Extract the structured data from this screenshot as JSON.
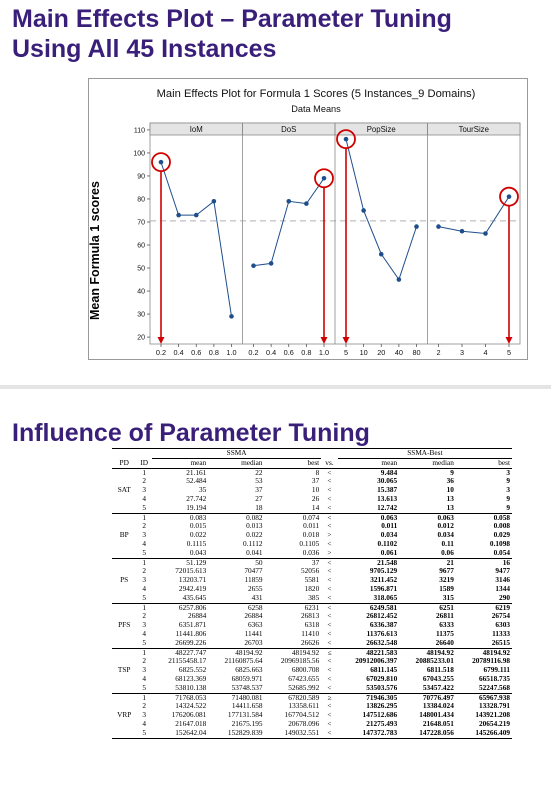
{
  "slide": {
    "title_line1": "Main Effects Plot – Parameter Tuning",
    "title_line2": "Using All 45 Instances",
    "section_title": "Influence of Parameter Tuning",
    "y_axis_label": "Mean Formula 1 scores"
  },
  "chart_data": {
    "type": "line",
    "title": "Main Effects Plot for Formula 1 Scores (5 Instances_9 Domains)",
    "subtitle": "Data Means",
    "ylabel": "Mean Formula 1 scores",
    "ylim": [
      20,
      110
    ],
    "yticks": [
      20,
      30,
      40,
      50,
      60,
      70,
      80,
      90,
      100,
      110
    ],
    "reference_line": 70.5,
    "grid": false,
    "panels": [
      {
        "name": "IoM",
        "x": [
          "0.2",
          "0.4",
          "0.6",
          "0.8",
          "1.0"
        ],
        "values": [
          96,
          73,
          73,
          79,
          29
        ],
        "highlight": "0.2"
      },
      {
        "name": "DoS",
        "x": [
          "0.2",
          "0.4",
          "0.6",
          "0.8",
          "1.0"
        ],
        "values": [
          51,
          52,
          79,
          78,
          89
        ],
        "highlight": "1.0"
      },
      {
        "name": "PopSize",
        "x": [
          "5",
          "10",
          "20",
          "40",
          "80"
        ],
        "values": [
          106,
          75,
          56,
          45,
          68
        ],
        "highlight": "5"
      },
      {
        "name": "TourSize",
        "x": [
          "2",
          "3",
          "4",
          "5"
        ],
        "values": [
          68,
          66,
          65,
          81
        ],
        "highlight": "5"
      }
    ],
    "colors": {
      "line": "#1f4e8c",
      "highlight": "#d00000",
      "reference": "#b0b0b0"
    }
  },
  "table": {
    "header_group_left": "SSMA",
    "header_group_right": "SSMA-Best",
    "columns": [
      "PD",
      "ID",
      "mean",
      "median",
      "best",
      "vs.",
      "mean",
      "median",
      "best"
    ],
    "groups": [
      {
        "pd": "SAT",
        "rows": [
          [
            "1",
            "21.161",
            "22",
            "8",
            "<",
            "9.484",
            "9",
            "3"
          ],
          [
            "2",
            "52.484",
            "53",
            "37",
            "<",
            "30.065",
            "36",
            "9"
          ],
          [
            "3",
            "35",
            "37",
            "10",
            "<",
            "15.387",
            "10",
            "3"
          ],
          [
            "4",
            "27.742",
            "27",
            "26",
            "<",
            "13.613",
            "13",
            "9"
          ],
          [
            "5",
            "19.194",
            "18",
            "14",
            "<",
            "12.742",
            "13",
            "9"
          ]
        ]
      },
      {
        "pd": "BP",
        "rows": [
          [
            "1",
            "0.083",
            "0.082",
            "0.074",
            "<",
            "0.063",
            "0.063",
            "0.058"
          ],
          [
            "2",
            "0.015",
            "0.013",
            "0.011",
            "<",
            "0.011",
            "0.012",
            "0.008"
          ],
          [
            "3",
            "0.022",
            "0.022",
            "0.018",
            ">",
            "0.034",
            "0.034",
            "0.029"
          ],
          [
            "4",
            "0.1115",
            "0.1112",
            "0.1105",
            "<",
            "0.1102",
            "0.11",
            "0.1098"
          ],
          [
            "5",
            "0.043",
            "0.041",
            "0.036",
            ">",
            "0.061",
            "0.06",
            "0.054"
          ]
        ]
      },
      {
        "pd": "PS",
        "rows": [
          [
            "1",
            "51.129",
            "50",
            "37",
            "<",
            "21.548",
            "21",
            "16"
          ],
          [
            "2",
            "72015.613",
            "70477",
            "52056",
            "<",
            "9705.129",
            "9677",
            "9477"
          ],
          [
            "3",
            "13203.71",
            "11859",
            "5581",
            "<",
            "3211.452",
            "3219",
            "3146"
          ],
          [
            "4",
            "2942.419",
            "2655",
            "1820",
            "<",
            "1596.871",
            "1589",
            "1344"
          ],
          [
            "5",
            "435.645",
            "431",
            "385",
            "<",
            "318.065",
            "315",
            "290"
          ]
        ]
      },
      {
        "pd": "PFS",
        "rows": [
          [
            "1",
            "6257.806",
            "6258",
            "6231",
            "<",
            "6249.581",
            "6251",
            "6219"
          ],
          [
            "2",
            "26884",
            "26884",
            "26813",
            "<",
            "26812.452",
            "26811",
            "26754"
          ],
          [
            "3",
            "6351.871",
            "6363",
            "6318",
            "<",
            "6336.387",
            "6333",
            "6303"
          ],
          [
            "4",
            "11441.806",
            "11441",
            "11410",
            "<",
            "11376.613",
            "11375",
            "11333"
          ],
          [
            "5",
            "26699.226",
            "26703",
            "26626",
            "<",
            "26632.548",
            "26640",
            "26515"
          ]
        ]
      },
      {
        "pd": "TSP",
        "rows": [
          [
            "1",
            "48227.747",
            "48194.92",
            "48194.92",
            "≤",
            "48221.583",
            "48194.92",
            "48194.92"
          ],
          [
            "2",
            "21155458.17",
            "21160875.64",
            "20969185.56",
            "<",
            "20912006.397",
            "20885233.01",
            "20789116.98"
          ],
          [
            "3",
            "6825.552",
            "6825.663",
            "6800.708",
            "<",
            "6811.145",
            "6811.518",
            "6799.111"
          ],
          [
            "4",
            "68123.369",
            "68059.971",
            "67423.655",
            "<",
            "67029.810",
            "67043.255",
            "66518.735"
          ],
          [
            "5",
            "53810.138",
            "53748.537",
            "52685.992",
            "<",
            "53503.576",
            "53457.422",
            "52247.568"
          ]
        ]
      },
      {
        "pd": "VRP",
        "rows": [
          [
            "1",
            "71768.053",
            "71480.081",
            "67820.589",
            "≥",
            "71946.305",
            "70776.497",
            "65967.938"
          ],
          [
            "2",
            "14324.522",
            "14411.658",
            "13358.611",
            "<",
            "13826.295",
            "13384.024",
            "13328.791"
          ],
          [
            "3",
            "176206.081",
            "177131.584",
            "167704.512",
            "<",
            "147512.686",
            "148001.434",
            "143921.208"
          ],
          [
            "4",
            "21647.018",
            "21675.195",
            "20678.096",
            "<",
            "21275.493",
            "21648.051",
            "20654.219"
          ],
          [
            "5",
            "152642.04",
            "152829.839",
            "149032.551",
            "<",
            "147372.783",
            "147228.056",
            "145266.409"
          ]
        ]
      }
    ]
  }
}
